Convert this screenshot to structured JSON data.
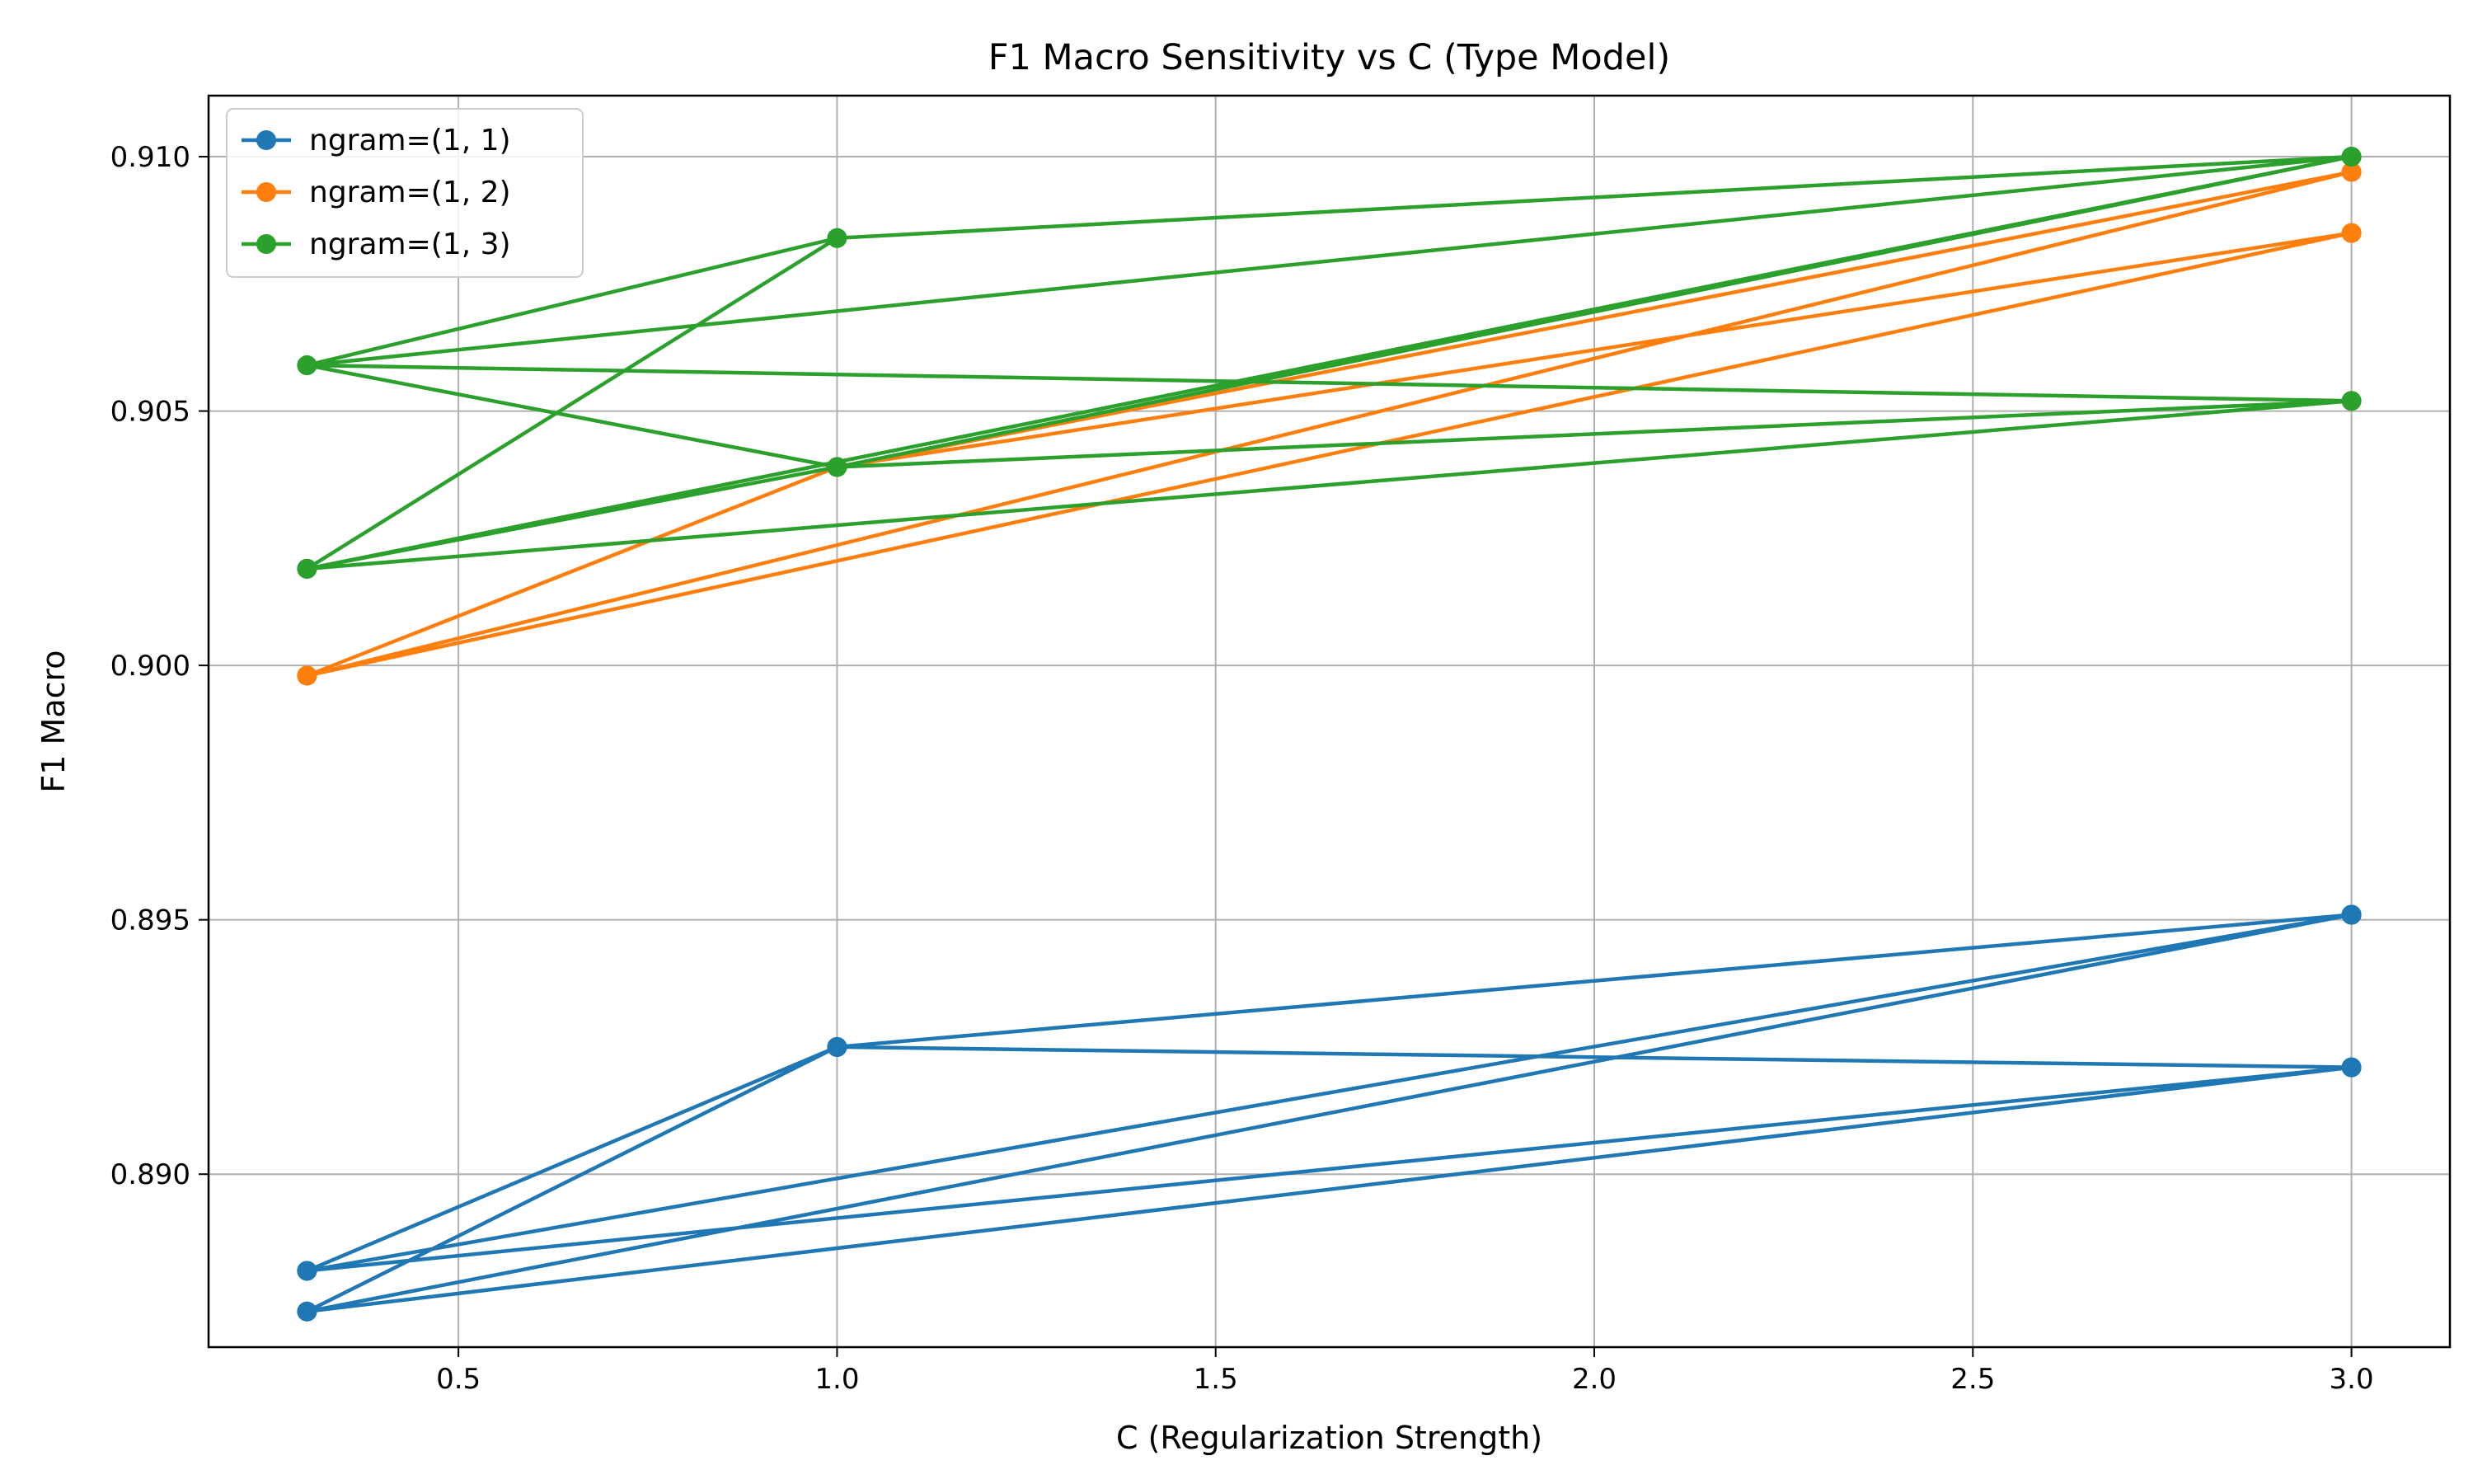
{
  "chart_data": {
    "type": "line",
    "title": "F1 Macro Sensitivity vs C (Type Model)",
    "xlabel": "C (Regularization Strength)",
    "ylabel": "F1 Macro",
    "xlim": [
      0.17,
      3.13
    ],
    "ylim": [
      0.8866,
      0.9112
    ],
    "x_ticks": [
      "0.5",
      "1.0",
      "1.5",
      "2.0",
      "2.5",
      "3.0"
    ],
    "y_ticks": [
      "0.890",
      "0.895",
      "0.900",
      "0.905",
      "0.910"
    ],
    "grid": true,
    "legend_position": "top-left",
    "series": [
      {
        "name": "ngram=(1, 1)",
        "color": "#1f77b4",
        "marker": "circle",
        "x": [
          0.3,
          1.0,
          3.0,
          0.3,
          1.0,
          3.0,
          0.3,
          1.0,
          3.0,
          0.3,
          1.0,
          3.0,
          0.3,
          1.0,
          3.0,
          0.3,
          3.0,
          0.3
        ],
        "y": [
          0.8881,
          0.8925,
          0.8951,
          0.8873,
          0.8925,
          0.8921,
          0.8881,
          0.8925,
          0.8951,
          0.8873,
          0.8925,
          0.8951,
          0.8881,
          0.8925,
          0.8951,
          0.8873,
          0.8921,
          0.8881
        ]
      },
      {
        "name": "ngram=(1, 2)",
        "color": "#ff7f0e",
        "marker": "circle",
        "x": [
          0.3,
          1.0,
          3.0,
          0.3,
          1.0,
          3.0,
          0.3,
          1.0,
          3.0,
          0.3,
          3.0,
          0.3
        ],
        "y": [
          0.8998,
          0.9039,
          0.9085,
          0.8998,
          0.9039,
          0.9097,
          0.8998,
          0.9039,
          0.9085,
          0.8998,
          0.9097,
          0.8998
        ]
      },
      {
        "name": "ngram=(1, 3)",
        "color": "#2ca02c",
        "marker": "circle",
        "x": [
          0.3,
          1.0,
          3.0,
          0.3,
          1.0,
          3.0,
          0.3,
          1.0,
          3.0,
          0.3,
          1.0,
          3.0,
          0.3,
          1.0,
          3.0,
          0.3
        ],
        "y": [
          0.9059,
          0.9039,
          0.9052,
          0.9019,
          0.9084,
          0.91,
          0.9019,
          0.9039,
          0.91,
          0.9059,
          0.9084,
          0.91,
          0.9019,
          0.9039,
          0.9052,
          0.9059
        ]
      }
    ]
  }
}
